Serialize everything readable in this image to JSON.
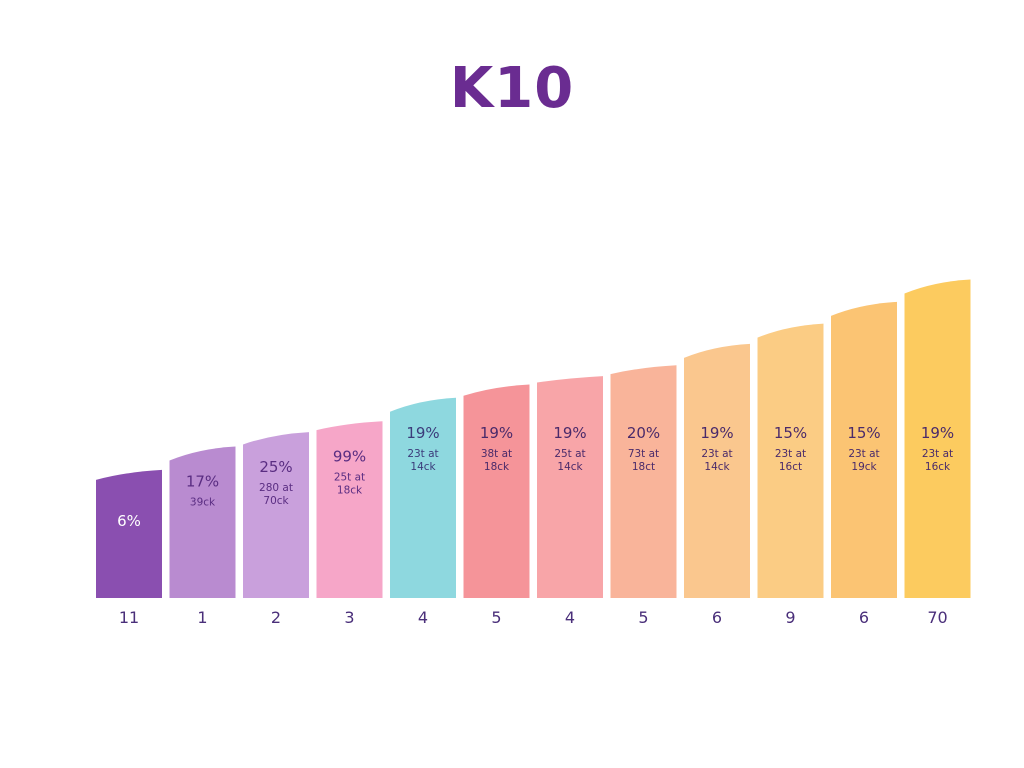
{
  "title": "K10",
  "chart_data": {
    "type": "bar",
    "title": "K10",
    "categories": [
      "11",
      "1",
      "2",
      "3",
      "4",
      "5",
      "4",
      "5",
      "6",
      "9",
      "6",
      "70"
    ],
    "values": [
      6,
      17,
      25,
      99,
      19,
      19,
      19,
      20,
      19,
      15,
      15,
      19
    ],
    "bar_labels": [
      "6%",
      "17%",
      "25%",
      "99%",
      "19%",
      "19%",
      "19%",
      "20%",
      "19%",
      "15%",
      "15%",
      "19%"
    ],
    "sub_labels": [
      [],
      [
        "39ck"
      ],
      [
        "280 at",
        "70ck"
      ],
      [
        "25t at",
        "18ck"
      ],
      [
        "23t at",
        "14ck"
      ],
      [
        "38t at",
        "18ck"
      ],
      [
        "25t at",
        "14ck"
      ],
      [
        "73t at",
        "18ct"
      ],
      [
        "23t at",
        "14ck"
      ],
      [
        "23t at",
        "16ct"
      ],
      [
        "23t at",
        "19ck"
      ],
      [
        "23t at",
        "16ck"
      ]
    ],
    "bar_heights_relative": [
      0.366,
      0.433,
      0.474,
      0.505,
      0.572,
      0.61,
      0.634,
      0.665,
      0.726,
      0.784,
      0.846,
      0.91
    ],
    "colors": [
      "#8a4fb0",
      "#b98bd0",
      "#c9a0dc",
      "#f6a6c8",
      "#8ed8df",
      "#f59499",
      "#f8a5a8",
      "#f9b49a",
      "#fac78e",
      "#fbcc84",
      "#fbc473",
      "#fccb5f"
    ],
    "label_colors": [
      "#ffffff",
      "#5a2d82",
      "#5a2d82",
      "#5a2d82",
      "#3b3b7a",
      "#4a2a6a",
      "#4a2a6a",
      "#4a2a6a",
      "#4a2a6a",
      "#4a2a6a",
      "#4a2a6a",
      "#4a2a6a"
    ],
    "grid": false,
    "legend": "none"
  }
}
